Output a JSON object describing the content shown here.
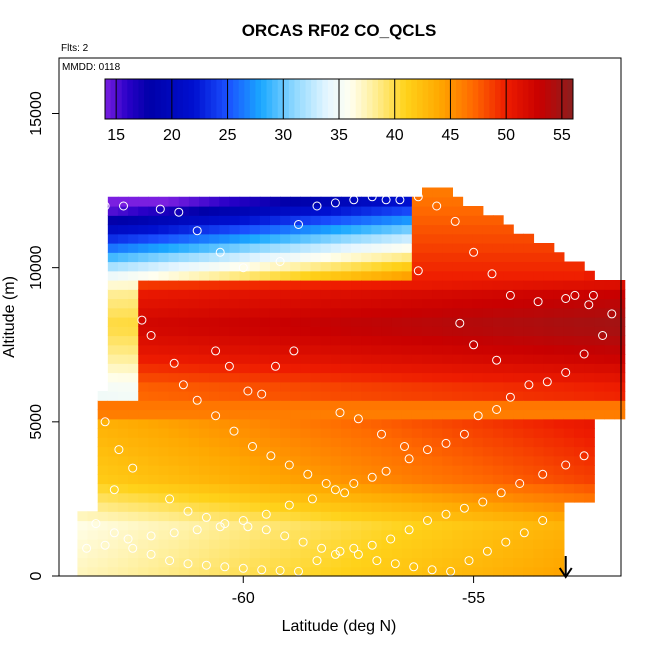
{
  "chart_data": {
    "type": "heatmap",
    "title": "ORCAS RF02 CO_QCLS",
    "annotations": {
      "flights": "Flts: 2",
      "date": "MMDD: 0118"
    },
    "xlabel": "Latitude (deg N)",
    "ylabel": "Altitude (m)",
    "xlim": [
      -64.0,
      -51.8
    ],
    "ylim": [
      0,
      16800
    ],
    "x_ticks": [
      -60,
      -55
    ],
    "x_tick_labels": [
      "-60",
      "-55"
    ],
    "y_ticks": [
      0,
      5000,
      10000,
      15000
    ],
    "y_tick_labels": [
      "0",
      "5000",
      "10000",
      "15000"
    ],
    "colorbar": {
      "range": [
        14,
        56
      ],
      "ticks": [
        15,
        20,
        25,
        30,
        35,
        40,
        45,
        50,
        55
      ],
      "tick_labels": [
        "15",
        "20",
        "25",
        "30",
        "35",
        "40",
        "45",
        "50",
        "55"
      ],
      "placement": "top, inside plot"
    },
    "profile_by_altitude_range_values": [
      {
        "altitude": 0,
        "value": 40
      },
      {
        "altitude": 1500,
        "value": 39
      },
      {
        "altitude": 3000,
        "value": 44
      },
      {
        "altitude": 5000,
        "value": 46
      },
      {
        "altitude": 6000,
        "value": 47
      },
      {
        "altitude": 7000,
        "value": 50
      },
      {
        "altitude": 8000,
        "value": 52
      },
      {
        "altitude": 9000,
        "value": 50
      },
      {
        "altitude": 10000,
        "value": 45
      },
      {
        "altitude": 11000,
        "value": 30
      },
      {
        "altitude": 12000,
        "value": 20
      }
    ],
    "domain_boundary_altitude_range": [
      0,
      12500
    ],
    "domain_boundary_latitude_range": [
      -63.8,
      -51.8
    ],
    "arrow_marker_latitude": -53.0,
    "sample_points_color": "#ffffff",
    "sample_points": [
      [
        -63.0,
        12000
      ],
      [
        -62.6,
        12000
      ],
      [
        -61.8,
        11900
      ],
      [
        -61.4,
        11800
      ],
      [
        -61.0,
        11200
      ],
      [
        -60.5,
        10500
      ],
      [
        -60.0,
        10000
      ],
      [
        -59.2,
        10200
      ],
      [
        -58.8,
        11400
      ],
      [
        -58.4,
        12000
      ],
      [
        -58.0,
        12100
      ],
      [
        -57.6,
        12200
      ],
      [
        -57.2,
        12300
      ],
      [
        -56.9,
        12200
      ],
      [
        -56.6,
        12200
      ],
      [
        -56.2,
        12300
      ],
      [
        -55.8,
        12000
      ],
      [
        -55.4,
        11500
      ],
      [
        -55.0,
        10500
      ],
      [
        -54.6,
        9800
      ],
      [
        -54.2,
        9100
      ],
      [
        -53.6,
        8900
      ],
      [
        -53.0,
        9000
      ],
      [
        -52.4,
        9100
      ],
      [
        -52.0,
        8500
      ],
      [
        -52.2,
        7800
      ],
      [
        -52.6,
        7200
      ],
      [
        -53.0,
        6600
      ],
      [
        -53.4,
        6300
      ],
      [
        -53.8,
        6200
      ],
      [
        -54.2,
        5800
      ],
      [
        -54.5,
        5400
      ],
      [
        -54.9,
        5200
      ],
      [
        -55.2,
        4600
      ],
      [
        -55.6,
        4300
      ],
      [
        -56.0,
        4100
      ],
      [
        -56.4,
        3800
      ],
      [
        -56.9,
        3400
      ],
      [
        -57.2,
        3200
      ],
      [
        -57.6,
        3000
      ],
      [
        -58.0,
        2800
      ],
      [
        -58.5,
        2500
      ],
      [
        -59.0,
        2300
      ],
      [
        -59.5,
        2000
      ],
      [
        -60.0,
        1800
      ],
      [
        -60.5,
        1600
      ],
      [
        -61.0,
        1500
      ],
      [
        -61.5,
        1400
      ],
      [
        -62.0,
        1300
      ],
      [
        -62.5,
        1200
      ],
      [
        -63.0,
        1000
      ],
      [
        -63.4,
        900
      ],
      [
        -63.2,
        1700
      ],
      [
        -62.8,
        1400
      ],
      [
        -62.4,
        900
      ],
      [
        -62.0,
        700
      ],
      [
        -61.6,
        500
      ],
      [
        -61.2,
        400
      ],
      [
        -60.8,
        350
      ],
      [
        -60.4,
        300
      ],
      [
        -60.0,
        250
      ],
      [
        -59.6,
        200
      ],
      [
        -59.2,
        180
      ],
      [
        -58.8,
        150
      ],
      [
        -58.4,
        500
      ],
      [
        -58.0,
        700
      ],
      [
        -57.6,
        900
      ],
      [
        -57.2,
        1000
      ],
      [
        -56.8,
        1200
      ],
      [
        -56.4,
        1500
      ],
      [
        -56.0,
        1800
      ],
      [
        -55.6,
        2000
      ],
      [
        -55.2,
        2200
      ],
      [
        -54.8,
        2400
      ],
      [
        -54.4,
        2700
      ],
      [
        -54.0,
        3000
      ],
      [
        -53.5,
        3300
      ],
      [
        -53.0,
        3600
      ],
      [
        -52.6,
        3900
      ],
      [
        -62.2,
        8300
      ],
      [
        -62.0,
        7800
      ],
      [
        -61.5,
        6900
      ],
      [
        -61.3,
        6200
      ],
      [
        -61.0,
        5700
      ],
      [
        -60.6,
        5200
      ],
      [
        -60.2,
        4700
      ],
      [
        -59.8,
        4200
      ],
      [
        -59.4,
        3900
      ],
      [
        -59.0,
        3600
      ],
      [
        -58.6,
        3300
      ],
      [
        -58.2,
        3000
      ],
      [
        -57.8,
        2700
      ],
      [
        -60.6,
        7300
      ],
      [
        -60.3,
        6800
      ],
      [
        -59.9,
        6000
      ],
      [
        -59.6,
        5900
      ],
      [
        -59.3,
        6800
      ],
      [
        -58.9,
        7300
      ],
      [
        -57.9,
        5300
      ],
      [
        -57.5,
        5100
      ],
      [
        -57.0,
        4600
      ],
      [
        -56.5,
        4200
      ],
      [
        -62.4,
        3500
      ],
      [
        -62.7,
        4100
      ],
      [
        -63.0,
        5000
      ],
      [
        -62.8,
        2800
      ],
      [
        -61.6,
        2500
      ],
      [
        -61.2,
        2100
      ],
      [
        -60.8,
        1900
      ],
      [
        -60.4,
        1700
      ],
      [
        -59.9,
        1600
      ],
      [
        -59.5,
        1500
      ],
      [
        -59.1,
        1300
      ],
      [
        -58.7,
        1100
      ],
      [
        -58.3,
        900
      ],
      [
        -57.9,
        800
      ],
      [
        -57.5,
        700
      ],
      [
        -57.1,
        500
      ],
      [
        -56.7,
        400
      ],
      [
        -56.3,
        300
      ],
      [
        -55.9,
        200
      ],
      [
        -55.5,
        150
      ],
      [
        -55.1,
        500
      ],
      [
        -54.7,
        800
      ],
      [
        -54.3,
        1100
      ],
      [
        -53.9,
        1400
      ],
      [
        -53.5,
        1800
      ],
      [
        -56.2,
        9900
      ],
      [
        -55.3,
        8200
      ],
      [
        -55.0,
        7500
      ],
      [
        -54.5,
        7000
      ],
      [
        -52.8,
        9100
      ],
      [
        -52.5,
        8800
      ]
    ]
  }
}
